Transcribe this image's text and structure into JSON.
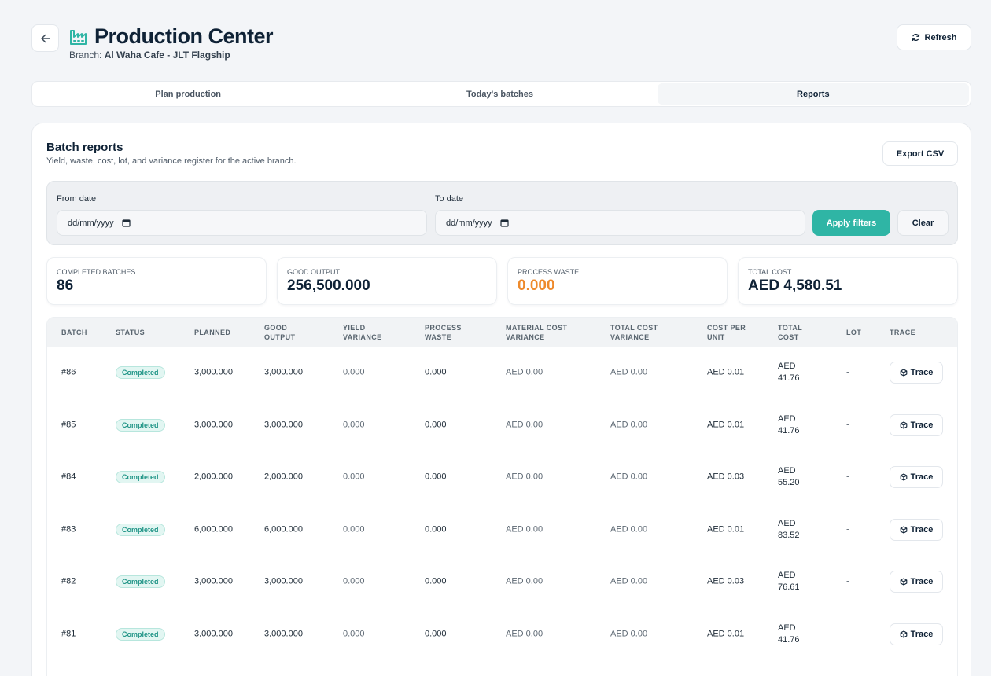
{
  "header": {
    "title": "Production Center",
    "branch_label": "Branch:",
    "branch_name": "Al Waha Cafe - JLT Flagship",
    "refresh_label": "Refresh"
  },
  "tabs": [
    {
      "label": "Plan production"
    },
    {
      "label": "Today's batches"
    },
    {
      "label": "Reports",
      "active": true
    }
  ],
  "reports": {
    "title": "Batch reports",
    "subtitle": "Yield, waste, cost, lot, and variance register for the active branch.",
    "export_label": "Export CSV"
  },
  "filters": {
    "from_label": "From date",
    "from_value": "dd/mm/yyyy",
    "to_label": "To date",
    "to_value": "dd/mm/yyyy",
    "apply_label": "Apply filters",
    "clear_label": "Clear"
  },
  "stats": [
    {
      "label": "Completed batches",
      "value": "86"
    },
    {
      "label": "Good output",
      "value": "256,500.000"
    },
    {
      "label": "Process waste",
      "value": "0.000"
    },
    {
      "label": "Total cost",
      "value": "AED 4,580.51"
    }
  ],
  "table": {
    "columns": [
      "Batch",
      "Status",
      "Planned",
      "Good output",
      "Yield variance",
      "Process waste",
      "Material cost variance",
      "Total cost variance",
      "Cost per unit",
      "Total cost",
      "Lot",
      "Trace"
    ],
    "rows": [
      {
        "batch": "#86",
        "status": "Completed",
        "planned": "3,000.000",
        "good_output": "3,000.000",
        "yield_variance": "0.000",
        "process_waste": "0.000",
        "material_cost_variance": "AED 0.00",
        "total_cost_variance": "AED 0.00",
        "cost_per_unit": "AED 0.01",
        "total_cost_currency": "AED",
        "total_cost_amount": "41.76",
        "lot": "-",
        "trace": "Trace"
      },
      {
        "batch": "#85",
        "status": "Completed",
        "planned": "3,000.000",
        "good_output": "3,000.000",
        "yield_variance": "0.000",
        "process_waste": "0.000",
        "material_cost_variance": "AED 0.00",
        "total_cost_variance": "AED 0.00",
        "cost_per_unit": "AED 0.01",
        "total_cost_currency": "AED",
        "total_cost_amount": "41.76",
        "lot": "-",
        "trace": "Trace"
      },
      {
        "batch": "#84",
        "status": "Completed",
        "planned": "2,000.000",
        "good_output": "2,000.000",
        "yield_variance": "0.000",
        "process_waste": "0.000",
        "material_cost_variance": "AED 0.00",
        "total_cost_variance": "AED 0.00",
        "cost_per_unit": "AED 0.03",
        "total_cost_currency": "AED",
        "total_cost_amount": "55.20",
        "lot": "-",
        "trace": "Trace"
      },
      {
        "batch": "#83",
        "status": "Completed",
        "planned": "6,000.000",
        "good_output": "6,000.000",
        "yield_variance": "0.000",
        "process_waste": "0.000",
        "material_cost_variance": "AED 0.00",
        "total_cost_variance": "AED 0.00",
        "cost_per_unit": "AED 0.01",
        "total_cost_currency": "AED",
        "total_cost_amount": "83.52",
        "lot": "-",
        "trace": "Trace"
      },
      {
        "batch": "#82",
        "status": "Completed",
        "planned": "3,000.000",
        "good_output": "3,000.000",
        "yield_variance": "0.000",
        "process_waste": "0.000",
        "material_cost_variance": "AED 0.00",
        "total_cost_variance": "AED 0.00",
        "cost_per_unit": "AED 0.03",
        "total_cost_currency": "AED",
        "total_cost_amount": "76.61",
        "lot": "-",
        "trace": "Trace"
      },
      {
        "batch": "#81",
        "status": "Completed",
        "planned": "3,000.000",
        "good_output": "3,000.000",
        "yield_variance": "0.000",
        "process_waste": "0.000",
        "material_cost_variance": "AED 0.00",
        "total_cost_variance": "AED 0.00",
        "cost_per_unit": "AED 0.01",
        "total_cost_currency": "AED",
        "total_cost_amount": "41.76",
        "lot": "-",
        "trace": "Trace"
      }
    ]
  },
  "colors": {
    "accent": "#2fb5a5",
    "warning": "#ee8a2c",
    "title": "#0f2236"
  }
}
